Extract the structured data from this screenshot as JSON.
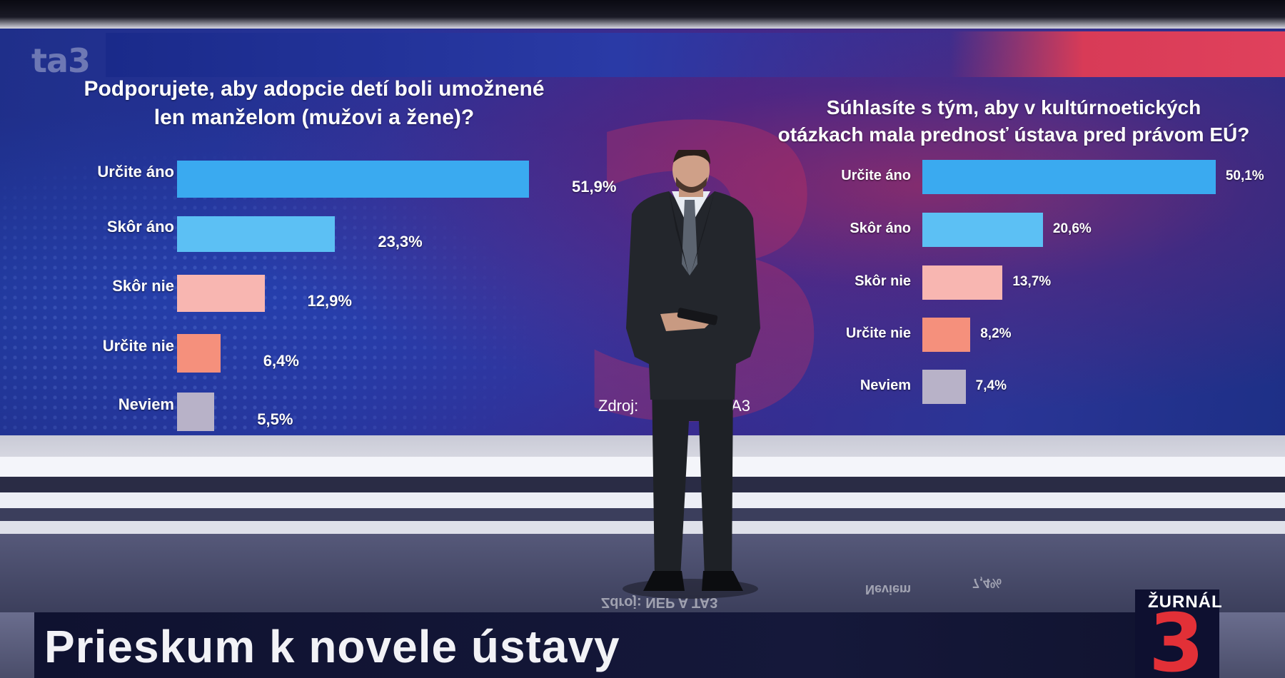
{
  "channel_logo": "ta3",
  "chart_data": [
    {
      "type": "bar",
      "orientation": "horizontal",
      "title": "Podporujete, aby adopcie detí boli umožnené len manželom (mužovi a žene)?",
      "title_lines": [
        "Podporujete, aby adopcie detí boli umožnené",
        "len manželom (mužovi a žene)?"
      ],
      "categories": [
        "Určite áno",
        "Skôr áno",
        "Skôr nie",
        "Určite nie",
        "Neviem"
      ],
      "values": [
        51.9,
        23.3,
        12.9,
        6.4,
        5.5
      ],
      "value_labels": [
        "51,9%",
        "23,3%",
        "12,9%",
        "6,4%",
        "5,5%"
      ],
      "colors": [
        "#3aaaf0",
        "#5cc0f4",
        "#f8b6b1",
        "#f5907c",
        "#b8b2c8"
      ],
      "unit": "%"
    },
    {
      "type": "bar",
      "orientation": "horizontal",
      "title": "Súhlasíte s tým, aby v kultúrnoetických otázkach mala prednosť ústava pred právom EÚ?",
      "title_lines": [
        "Súhlasíte s tým, aby v kultúrnoetických",
        "otázkach mala prednosť ústava pred právom EÚ?"
      ],
      "categories": [
        "Určite áno",
        "Skôr áno",
        "Skôr nie",
        "Určite nie",
        "Neviem"
      ],
      "values": [
        50.1,
        20.6,
        13.7,
        8.2,
        7.4
      ],
      "value_labels": [
        "50,1%",
        "20,6%",
        "13,7%",
        "8,2%",
        "7,4%"
      ],
      "colors": [
        "#3aaaf0",
        "#5cc0f4",
        "#f8b6b1",
        "#f5907c",
        "#b8b2c8"
      ],
      "unit": "%"
    }
  ],
  "source": {
    "prefix": "Zdroj:",
    "suffix": "TA3"
  },
  "lower_third": {
    "headline": "Prieskum k novele ústavy"
  },
  "program_brand": {
    "word": "ŽURNÁL",
    "number": "3"
  },
  "reflection_texts": [
    "Zdroj: NEP A TA3",
    "Neviem",
    "7,4%"
  ],
  "colors": {
    "brand_red": "#e23037",
    "wall_blue": "#27339a",
    "lower_third_bg": "#15183a"
  }
}
